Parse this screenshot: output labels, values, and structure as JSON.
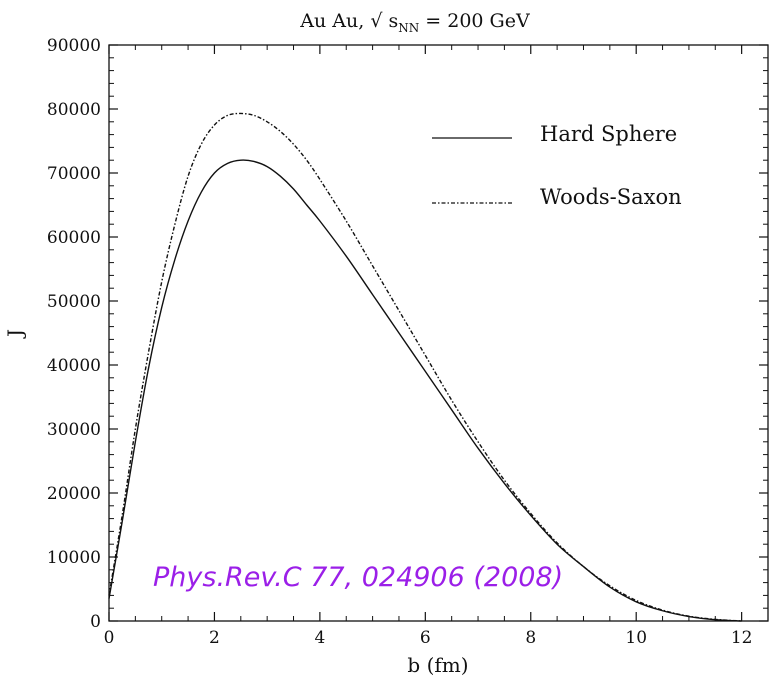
{
  "chart_data": {
    "type": "line",
    "title_main": "Au Au, √ s",
    "title_sub": "NN",
    "title_tail": " =  200 GeV",
    "xlabel": "b (fm)",
    "ylabel": "J",
    "xlim": [
      0,
      12.5
    ],
    "ylim": [
      0,
      90000
    ],
    "x_ticks": [
      "0",
      "2",
      "4",
      "6",
      "8",
      "10",
      "12"
    ],
    "y_ticks": [
      "0",
      "10000",
      "20000",
      "30000",
      "40000",
      "50000",
      "60000",
      "70000",
      "80000",
      "90000"
    ],
    "legend_position": "top-right",
    "series": [
      {
        "name": "Hard Sphere",
        "style": "solid",
        "x": [
          0,
          0.25,
          0.5,
          0.75,
          1.0,
          1.25,
          1.5,
          1.75,
          2.0,
          2.25,
          2.5,
          2.75,
          3.0,
          3.25,
          3.5,
          3.75,
          4.0,
          4.5,
          5.0,
          5.5,
          6.0,
          6.5,
          7.0,
          7.5,
          8.0,
          8.5,
          9.0,
          9.5,
          10.0,
          10.5,
          11.0,
          11.5,
          12.0
        ],
        "y": [
          3500,
          15500,
          28000,
          39500,
          49000,
          56500,
          62500,
          67000,
          70000,
          71500,
          72000,
          71800,
          71000,
          69500,
          67500,
          65000,
          62500,
          57000,
          51000,
          45000,
          39000,
          33000,
          27000,
          21500,
          16500,
          12000,
          8500,
          5300,
          3000,
          1600,
          700,
          200,
          0
        ]
      },
      {
        "name": "Woods-Saxon",
        "style": "dashdot",
        "x": [
          0,
          0.25,
          0.5,
          0.75,
          1.0,
          1.25,
          1.5,
          1.75,
          2.0,
          2.25,
          2.5,
          2.75,
          3.0,
          3.25,
          3.5,
          3.75,
          4.0,
          4.5,
          5.0,
          5.5,
          6.0,
          6.5,
          7.0,
          7.5,
          8.0,
          8.5,
          9.0,
          9.5,
          10.0,
          10.5,
          11.0,
          11.5,
          12.0
        ],
        "y": [
          4000,
          16500,
          30000,
          42000,
          53000,
          62000,
          69500,
          74500,
          77500,
          79000,
          79300,
          79000,
          78000,
          76500,
          74500,
          72000,
          69000,
          62500,
          55500,
          48500,
          41500,
          34500,
          28000,
          22000,
          16800,
          12200,
          8500,
          5500,
          3200,
          1700,
          750,
          250,
          0
        ]
      }
    ],
    "annotation": "Phys.Rev.C 77, 024906 (2008)",
    "colors": {
      "axis": "#111111",
      "line": "#111111",
      "annotation": "#9b1fe8",
      "background": "#ffffff"
    }
  }
}
